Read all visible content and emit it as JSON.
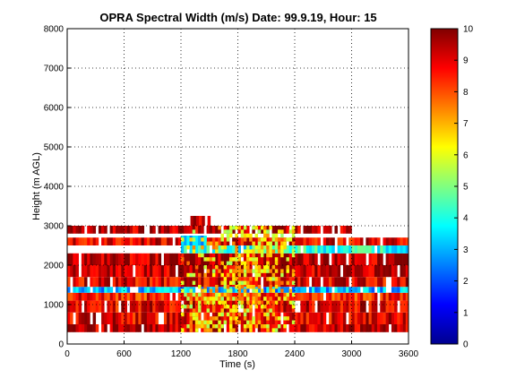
{
  "chart_data": {
    "type": "heatmap",
    "title": "OPRA Spectral Width (m/s)  Date: 99.9.19, Hour: 15",
    "xlabel": "Time (s)",
    "ylabel": "Height (m AGL)",
    "xlim": [
      0,
      3600
    ],
    "ylim": [
      0,
      8000
    ],
    "x_ticks": [
      0,
      600,
      1200,
      1800,
      2400,
      3000,
      3600
    ],
    "y_ticks": [
      0,
      1000,
      2000,
      3000,
      4000,
      5000,
      6000,
      7000,
      8000
    ],
    "grid": "on",
    "colormap": "jet",
    "colorbar": {
      "range": [
        0,
        10
      ],
      "ticks": [
        0,
        1,
        2,
        3,
        4,
        5,
        6,
        7,
        8,
        9,
        10
      ],
      "placement": "right"
    },
    "bands": [
      {
        "height": [
          300,
          500
        ],
        "time": [
          0,
          3600
        ],
        "value": 9.5
      },
      {
        "height": [
          500,
          800
        ],
        "time": [
          0,
          3600
        ],
        "value": 9.0
      },
      {
        "height": [
          800,
          1100
        ],
        "time": [
          0,
          3600
        ],
        "value": 9.0
      },
      {
        "height": [
          1100,
          1300
        ],
        "time": [
          0,
          3600
        ],
        "value": 8.5
      },
      {
        "height": [
          1300,
          1450
        ],
        "time": [
          0,
          3600
        ],
        "value": 3.0
      },
      {
        "height": [
          1450,
          1700
        ],
        "time": [
          0,
          3600
        ],
        "value": 9.0
      },
      {
        "height": [
          1700,
          2000
        ],
        "time": [
          0,
          3600
        ],
        "value": 9.5
      },
      {
        "height": [
          2000,
          2300
        ],
        "time": [
          0,
          3600
        ],
        "value": 9.5
      },
      {
        "height": [
          2300,
          2500
        ],
        "time": [
          1200,
          3600
        ],
        "value": 4.0
      },
      {
        "height": [
          2500,
          2700
        ],
        "time": [
          0,
          3600
        ],
        "value": 9.0
      },
      {
        "height": [
          2800,
          3000
        ],
        "time": [
          0,
          3000
        ],
        "value": 9.5
      },
      {
        "height": [
          2500,
          2750
        ],
        "time": [
          1200,
          1450
        ],
        "value": 3.5
      },
      {
        "height": [
          3000,
          3250
        ],
        "time": [
          1300,
          1500
        ],
        "value": 9.5
      }
    ],
    "features": [
      {
        "description": "yellow/green plume",
        "time": [
          1200,
          2400
        ],
        "height": [
          300,
          3000
        ],
        "value": 6.5
      }
    ]
  }
}
